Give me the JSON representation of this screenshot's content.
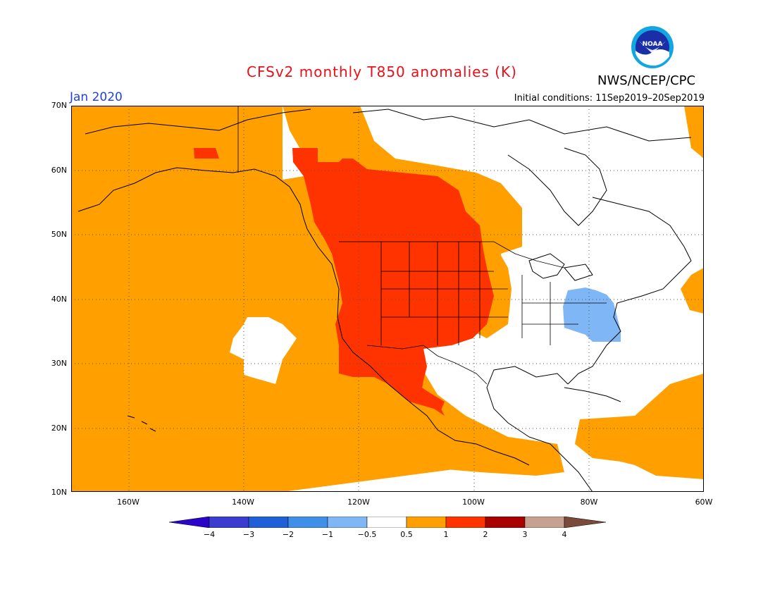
{
  "header": {
    "title": "CFSv2 monthly T850 anomalies (K)",
    "agency": "NWS/NCEP/CPC",
    "valid_month": "Jan 2020",
    "initial_conditions": "Initial conditions: 11Sep2019–20Sep2019",
    "logo_text": "NOAA"
  },
  "map": {
    "lat_labels": [
      "70N",
      "60N",
      "50N",
      "40N",
      "30N",
      "20N",
      "10N"
    ],
    "lon_labels": [
      "160W",
      "140W",
      "120W",
      "100W",
      "80W",
      "60W"
    ],
    "lat_range": [
      10,
      70
    ],
    "lon_range": [
      -170,
      -60
    ],
    "gridlines": true,
    "anomaly_regions": [
      {
        "level": "0.5 to 1",
        "color": "#ff9f00",
        "description": "broad weak warm anomaly over North Pacific, western North America, Caribbean"
      },
      {
        "level": "1 to 2",
        "color": "#ff3300",
        "description": "western Canada and western United States"
      },
      {
        "level": "-1 to -0.5",
        "color": "#7fb6f5",
        "description": "mid-Atlantic United States"
      }
    ]
  },
  "legend": {
    "labels": [
      "−4",
      "−3",
      "−2",
      "−1",
      "−0.5",
      "0.5",
      "1",
      "2",
      "3",
      "4"
    ],
    "colors": [
      "#2a04c8",
      "#3c3cd0",
      "#1f60d8",
      "#3f8ee8",
      "#7fb6f5",
      "#ffffff",
      "#ff9f00",
      "#ff3300",
      "#a90000",
      "#c8a090",
      "#7a4b3a"
    ]
  }
}
